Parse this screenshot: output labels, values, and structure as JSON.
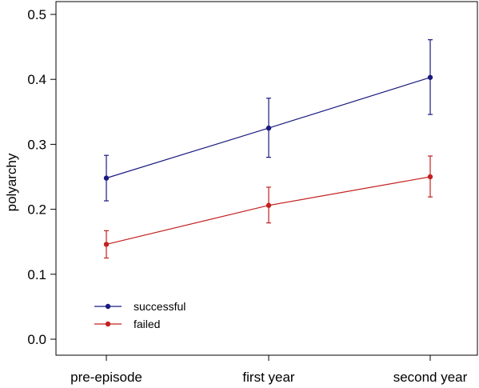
{
  "chart_data": {
    "type": "line",
    "title": "",
    "xlabel": "",
    "ylabel": "polyarchy",
    "categories": [
      "pre-episode",
      "first year",
      "second year"
    ],
    "ylim": [
      0.0,
      0.5
    ],
    "yticks": [
      0.0,
      0.1,
      0.2,
      0.3,
      0.4,
      0.5
    ],
    "ytick_labels": [
      "0.0",
      "0.1",
      "0.2",
      "0.3",
      "0.4",
      "0.5"
    ],
    "grid": false,
    "legend_position": "bottom-left",
    "series": [
      {
        "name": "successful",
        "color": "#1a1a80",
        "values": [
          0.248,
          0.325,
          0.403
        ],
        "error_low": [
          0.213,
          0.28,
          0.346
        ],
        "error_high": [
          0.283,
          0.371,
          0.461
        ]
      },
      {
        "name": "failed",
        "color": "#c42020",
        "values": [
          0.146,
          0.206,
          0.25
        ],
        "error_low": [
          0.125,
          0.179,
          0.219
        ],
        "error_high": [
          0.167,
          0.234,
          0.282
        ]
      }
    ]
  }
}
